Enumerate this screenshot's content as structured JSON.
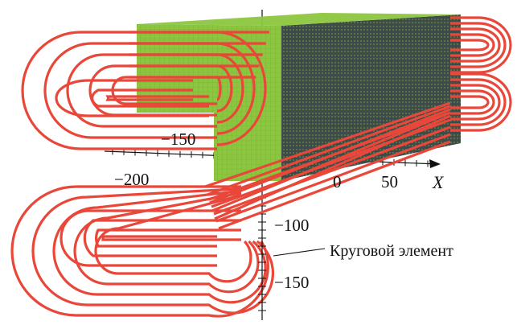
{
  "axis_labels": {
    "x_axis_name": "X",
    "x_tick_0": "0",
    "x_tick_50": "50",
    "x_tick_neg200": "−200",
    "x_tick_neg150": "−150",
    "y_tick_neg100": "−100",
    "y_tick_neg150": "−150"
  },
  "annotation": {
    "text": "Круговой элемент"
  },
  "colors": {
    "coil": "#e8473a",
    "mesh_front": "#8cc63f",
    "mesh_top": "#8cc63f",
    "mesh_side": "#3f4a4a",
    "mesh_grid": "#6fa62f",
    "axis": "#111111"
  }
}
